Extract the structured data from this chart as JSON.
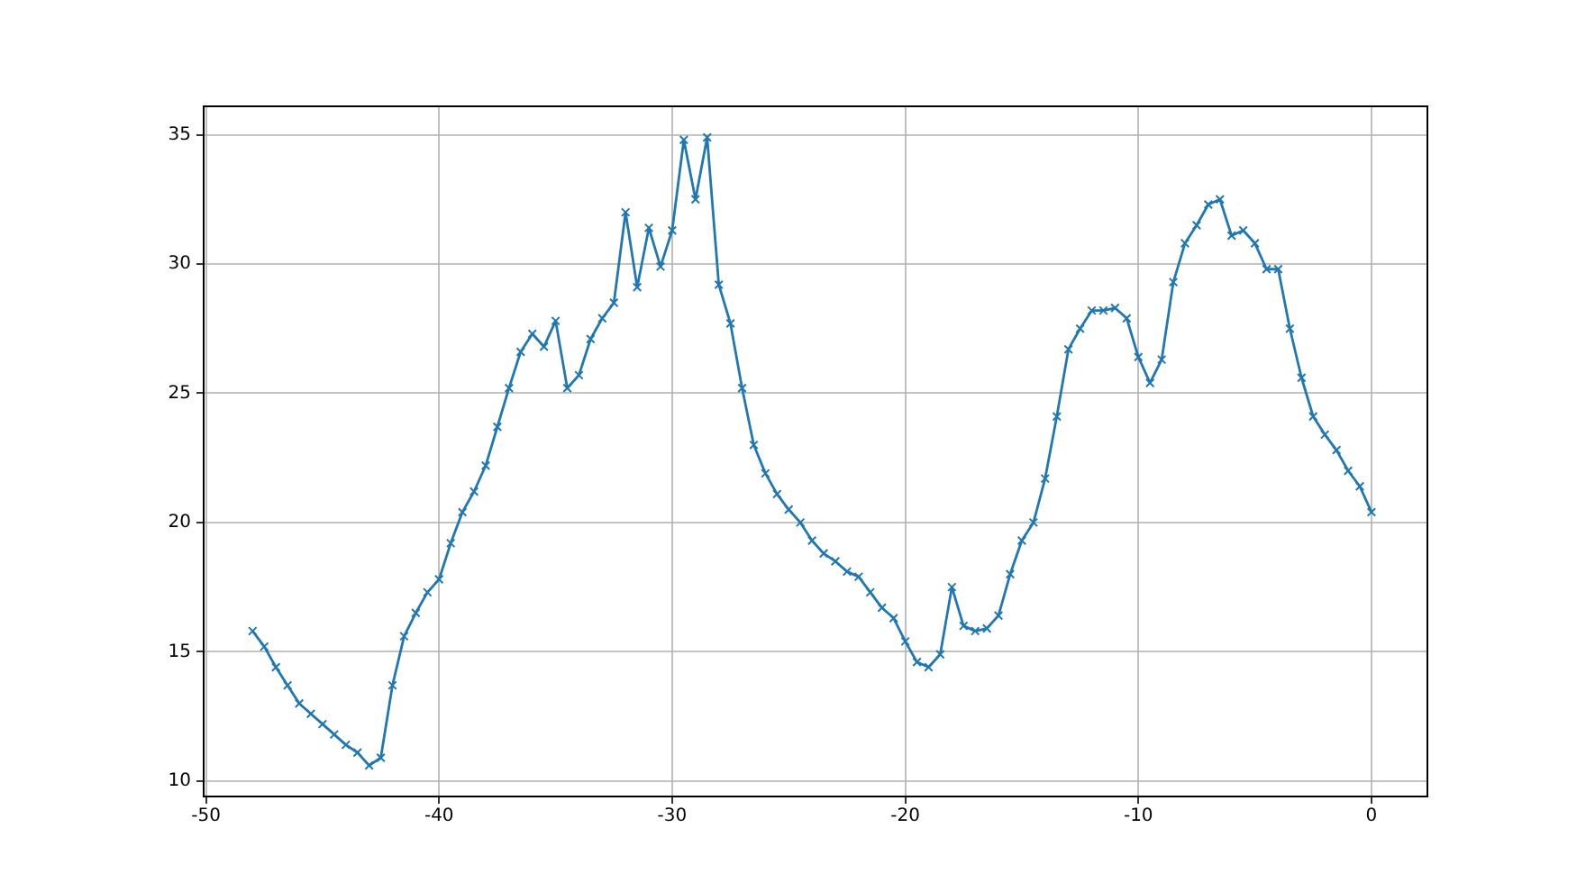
{
  "chart_data": {
    "type": "line",
    "x": [
      -48,
      -47.5,
      -47,
      -46.5,
      -46,
      -45.5,
      -45,
      -44.5,
      -44,
      -43.5,
      -43,
      -42.5,
      -42,
      -41.5,
      -41,
      -40.5,
      -40,
      -39.5,
      -39,
      -38.5,
      -38,
      -37.5,
      -37,
      -36.5,
      -36,
      -35.5,
      -35,
      -34.5,
      -34,
      -33.5,
      -33,
      -32.5,
      -32,
      -31.5,
      -31,
      -30.5,
      -30,
      -29.5,
      -29,
      -28.5,
      -28,
      -27.5,
      -27,
      -26.5,
      -26,
      -25.5,
      -25,
      -24.5,
      -24,
      -23.5,
      -23,
      -22.5,
      -22,
      -21.5,
      -21,
      -20.5,
      -20,
      -19.5,
      -19,
      -18.5,
      -18,
      -17.5,
      -17,
      -16.5,
      -16,
      -15.5,
      -15,
      -14.5,
      -14,
      -13.5,
      -13,
      -12.5,
      -12,
      -11.5,
      -11,
      -10.5,
      -10,
      -9.5,
      -9,
      -8.5,
      -8,
      -7.5,
      -7,
      -6.5,
      -6,
      -5.5,
      -5,
      -4.5,
      -4,
      -3.5,
      -3,
      -2.5,
      -2,
      -1.5,
      -1,
      -0.5,
      0
    ],
    "values": [
      15.8,
      15.2,
      14.4,
      13.7,
      13.0,
      12.6,
      12.2,
      11.8,
      11.4,
      11.1,
      10.6,
      10.9,
      13.7,
      15.6,
      16.5,
      17.3,
      17.8,
      19.2,
      20.4,
      21.2,
      22.2,
      23.7,
      25.2,
      26.6,
      27.3,
      26.8,
      27.8,
      25.2,
      25.7,
      27.1,
      27.9,
      28.5,
      32.0,
      29.1,
      31.4,
      29.9,
      31.3,
      34.8,
      32.5,
      34.9,
      29.2,
      27.7,
      25.2,
      23.0,
      21.9,
      21.1,
      20.5,
      20.0,
      19.3,
      18.8,
      18.5,
      18.1,
      17.9,
      17.3,
      16.7,
      16.3,
      15.4,
      14.6,
      14.4,
      14.9,
      17.5,
      16.0,
      15.8,
      15.9,
      16.4,
      18.0,
      19.3,
      20.0,
      21.7,
      24.1,
      26.7,
      27.5,
      28.2,
      28.2,
      28.3,
      27.9,
      26.4,
      25.4,
      26.3,
      29.3,
      30.8,
      31.5,
      32.3,
      32.5,
      31.1,
      31.3,
      30.8,
      29.8,
      29.8,
      27.5,
      25.6,
      24.1,
      23.4,
      22.8,
      22.0,
      21.4,
      20.4
    ],
    "color": "#1f77b4",
    "xlim": [
      -50.1,
      2.4
    ],
    "ylim": [
      9.4,
      36.1
    ],
    "xticks": [
      -50,
      -40,
      -30,
      -20,
      -10,
      0
    ],
    "yticks": [
      10,
      15,
      20,
      25,
      30,
      35
    ],
    "grid": true,
    "marker": "cross",
    "line_style": "solid"
  }
}
